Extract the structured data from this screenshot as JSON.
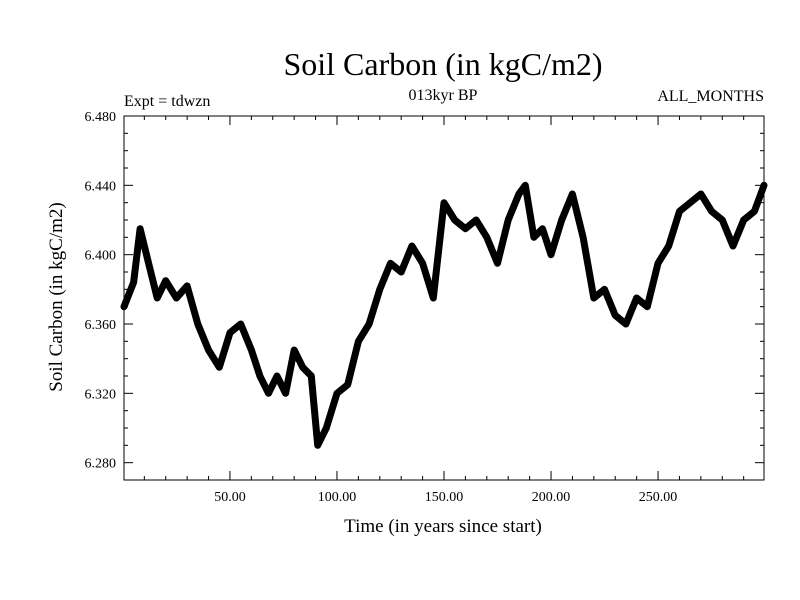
{
  "chart_data": {
    "type": "line",
    "title": "Soil Carbon (in kgC/m2)",
    "subtitle": "013kyr BP",
    "left_note": "Expt = tdwzn",
    "right_note": "ALL_MONTHS",
    "xlabel": "Time (in years since start)",
    "ylabel": "Soil Carbon (in kgC/m2)",
    "xlim": [
      0.5,
      299.5
    ],
    "ylim": [
      6.27,
      6.48
    ],
    "x_ticks": [
      50,
      100,
      150,
      200,
      250
    ],
    "x_tick_labels": [
      "50.00",
      "100.00",
      "150.00",
      "200.00",
      "250.00"
    ],
    "y_ticks": [
      6.28,
      6.32,
      6.36,
      6.4,
      6.44,
      6.48
    ],
    "y_tick_labels": [
      "6.280",
      "6.320",
      "6.360",
      "6.400",
      "6.440",
      "6.480"
    ],
    "line_color": "#000000",
    "grid": false,
    "series": [
      {
        "x": [
          0.5,
          5,
          8,
          12,
          16,
          20,
          25,
          30,
          35,
          40,
          45,
          50,
          55,
          60,
          64,
          68,
          72,
          76,
          80,
          84,
          88,
          91,
          95,
          100,
          105,
          110,
          115,
          120,
          125,
          130,
          135,
          140,
          145,
          150,
          155,
          160,
          165,
          170,
          175,
          180,
          185,
          188,
          192,
          196,
          200,
          205,
          210,
          215,
          220,
          225,
          230,
          235,
          240,
          245,
          250,
          255,
          260,
          265,
          270,
          275,
          280,
          285,
          290,
          295,
          299.5
        ],
        "y": [
          6.37,
          6.384,
          6.415,
          6.395,
          6.375,
          6.385,
          6.375,
          6.382,
          6.36,
          6.345,
          6.335,
          6.355,
          6.36,
          6.345,
          6.33,
          6.32,
          6.33,
          6.32,
          6.345,
          6.335,
          6.33,
          6.29,
          6.3,
          6.32,
          6.325,
          6.35,
          6.36,
          6.38,
          6.395,
          6.39,
          6.405,
          6.395,
          6.375,
          6.43,
          6.42,
          6.415,
          6.42,
          6.41,
          6.395,
          6.42,
          6.435,
          6.44,
          6.41,
          6.415,
          6.4,
          6.42,
          6.435,
          6.41,
          6.375,
          6.38,
          6.365,
          6.36,
          6.375,
          6.37,
          6.395,
          6.405,
          6.425,
          6.43,
          6.435,
          6.425,
          6.42,
          6.405,
          6.42,
          6.425,
          6.44
        ]
      }
    ]
  }
}
